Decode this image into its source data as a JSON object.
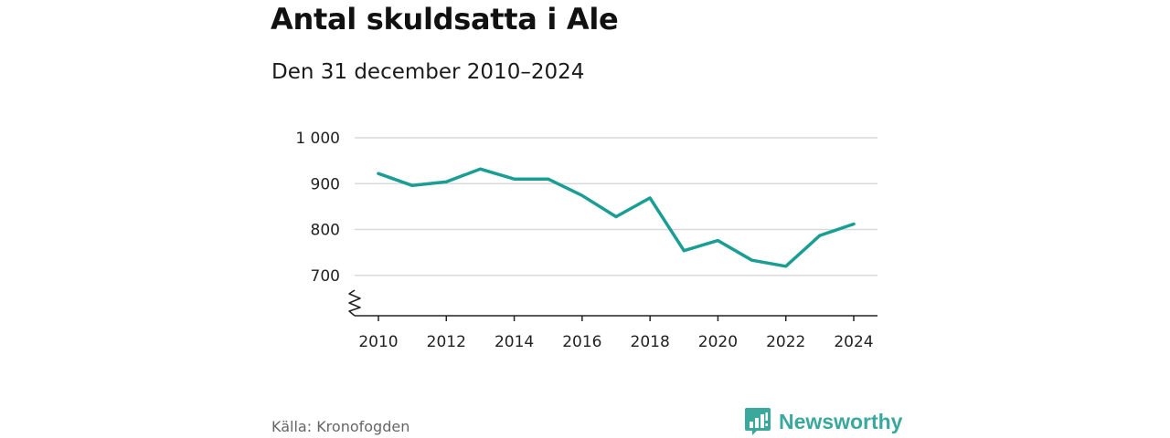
{
  "header": {
    "title": "Antal skuldsatta i Ale",
    "subtitle": "Den 31 december 2010–2024"
  },
  "footer": {
    "source": "Källa: Kronofogden",
    "brand": "Newsworthy",
    "brand_icon": "bar-chart-logo-icon"
  },
  "colors": {
    "line": "#1a9e94",
    "grid": "#d9d9d9",
    "axis": "#222222",
    "brand": "#3aa89d"
  },
  "chart_data": {
    "type": "line",
    "title": "Antal skuldsatta i Ale",
    "subtitle": "Den 31 december 2010–2024",
    "x": [
      2010,
      2011,
      2012,
      2013,
      2014,
      2015,
      2016,
      2017,
      2018,
      2019,
      2020,
      2021,
      2022,
      2023,
      2024
    ],
    "series": [
      {
        "values": [
          922,
          896,
          904,
          932,
          910,
          910,
          874,
          828,
          869,
          754,
          776,
          733,
          720,
          787,
          812
        ]
      }
    ],
    "x_ticks": [
      2010,
      2012,
      2014,
      2016,
      2018,
      2020,
      2022,
      2024
    ],
    "y_ticks": [
      700,
      800,
      900,
      1000
    ],
    "y_tick_labels": [
      "700",
      "800",
      "900",
      "1 000"
    ],
    "ylim": [
      610,
      1000
    ],
    "y_axis_break": true,
    "grid": true,
    "xlabel": "",
    "ylabel": ""
  }
}
